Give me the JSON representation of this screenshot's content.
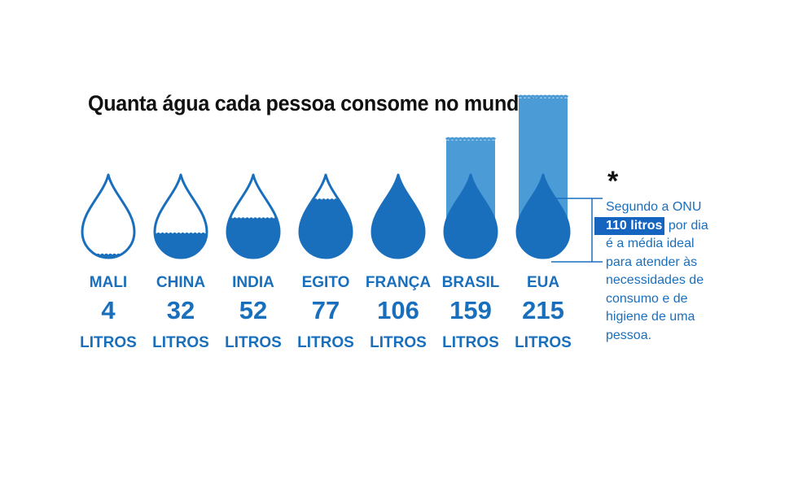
{
  "title": "Quanta água cada pessoa consome no mundo*",
  "chart_data": {
    "type": "bar",
    "title": "Quanta água cada pessoa consome no mundo*",
    "categories": [
      "MALI",
      "CHINA",
      "INDIA",
      "EGITO",
      "FRANÇA",
      "BRASIL",
      "EUA"
    ],
    "values": [
      4,
      32,
      52,
      77,
      106,
      159,
      215
    ],
    "value_labels": [
      "4",
      "32",
      "52",
      "77",
      "106",
      "159",
      "215"
    ],
    "unit": "LITROS",
    "reference": {
      "value": 110,
      "label": "110 litros"
    }
  },
  "note": {
    "asterisk": "*",
    "line1": "Segundo a ONU",
    "highlight": "110 litros",
    "line2_rest": " por dia",
    "line3": "é a média ideal",
    "line4": "para atender às",
    "line5": "necessidades de",
    "line6": "consumo e de",
    "line7": "higiene de uma",
    "line8": "pessoa."
  },
  "colors": {
    "water": "#1a6fbd",
    "overflow": "#4a9bd6",
    "outline": "#1a6fbd",
    "highlight_bg": "#1565c0",
    "title": "#111111"
  }
}
